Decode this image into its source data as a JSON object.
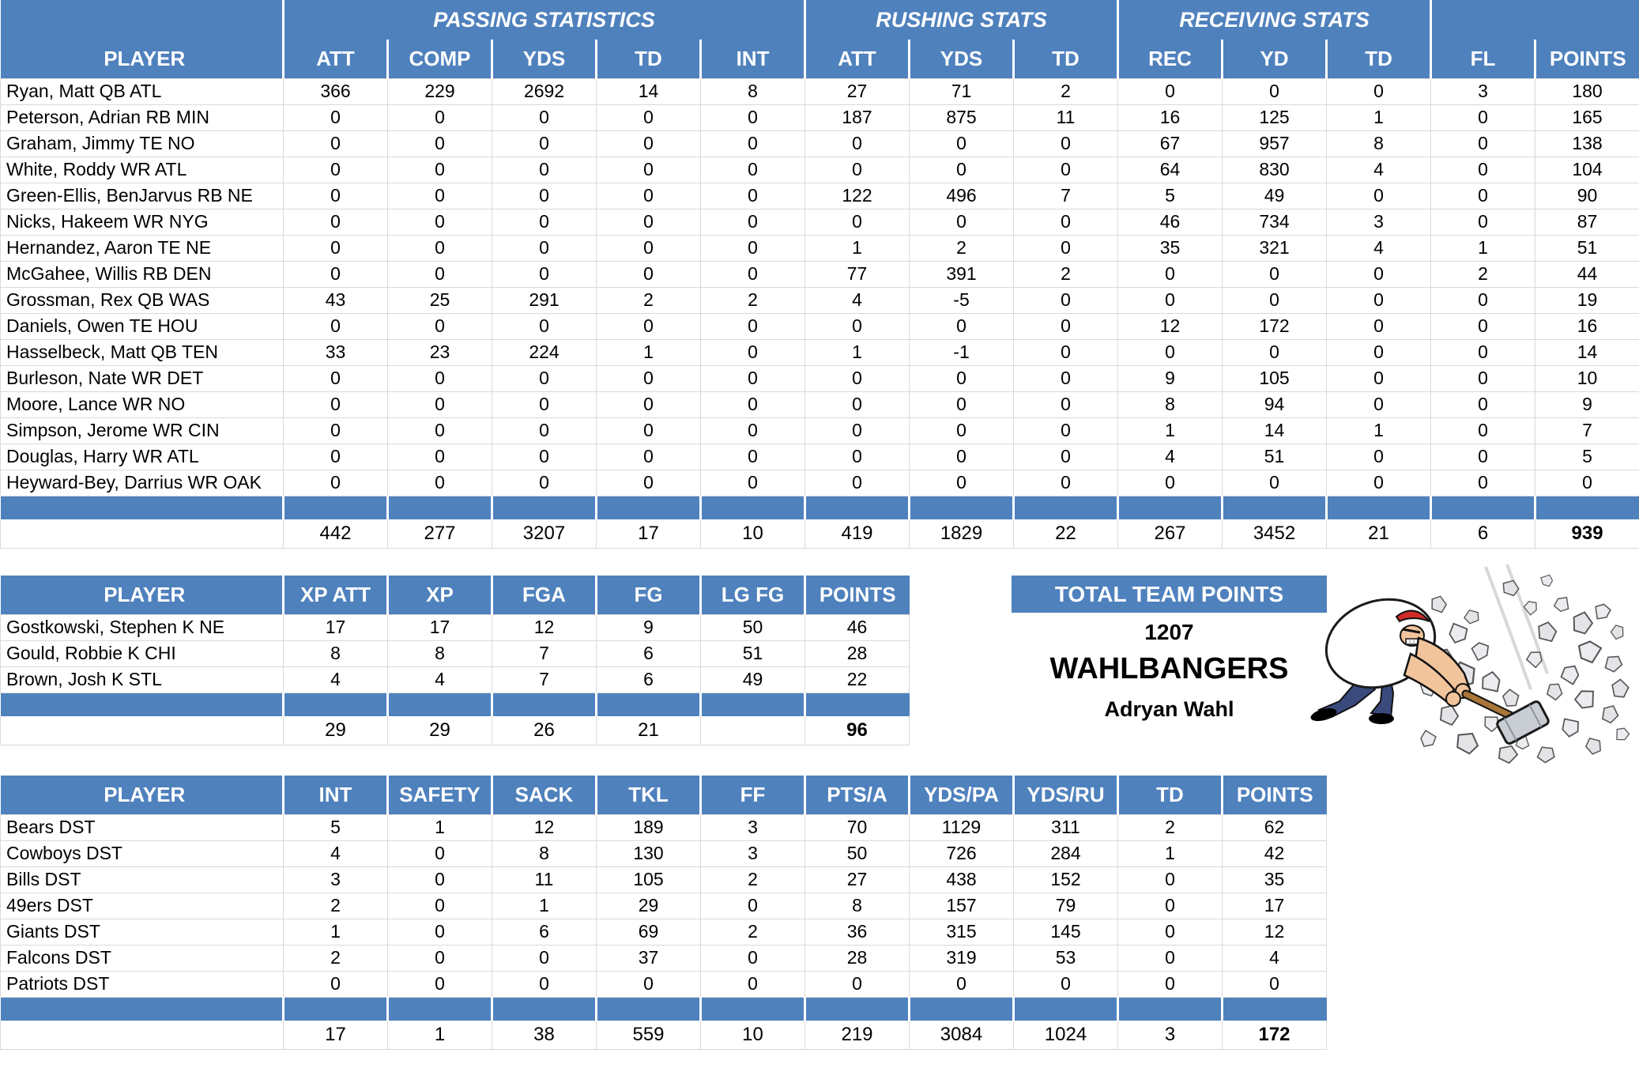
{
  "colors": {
    "header_blue": "#4F81BD",
    "grid_line": "#d9d9d9",
    "header_text": "#ffffff",
    "body_text": "#000000"
  },
  "main_table": {
    "player_header": "PLAYER",
    "group_headers": [
      {
        "label": "",
        "span": 1
      },
      {
        "label": "PASSING STATISTICS",
        "span": 5
      },
      {
        "label": "RUSHING STATS",
        "span": 3
      },
      {
        "label": "RECEIVING STATS",
        "span": 3
      },
      {
        "label": "",
        "span": 2
      }
    ],
    "columns": [
      "ATT",
      "COMP",
      "YDS",
      "TD",
      "INT",
      "ATT",
      "YDS",
      "TD",
      "REC",
      "YD",
      "TD",
      "FL",
      "POINTS"
    ],
    "rows": [
      {
        "player": "Ryan, Matt QB ATL",
        "values": [
          366,
          229,
          2692,
          14,
          8,
          27,
          71,
          2,
          0,
          0,
          0,
          3,
          180
        ]
      },
      {
        "player": "Peterson, Adrian RB MIN",
        "values": [
          0,
          0,
          0,
          0,
          0,
          187,
          875,
          11,
          16,
          125,
          1,
          0,
          165
        ]
      },
      {
        "player": "Graham, Jimmy TE NO",
        "values": [
          0,
          0,
          0,
          0,
          0,
          0,
          0,
          0,
          67,
          957,
          8,
          0,
          138
        ]
      },
      {
        "player": "White, Roddy WR ATL",
        "values": [
          0,
          0,
          0,
          0,
          0,
          0,
          0,
          0,
          64,
          830,
          4,
          0,
          104
        ]
      },
      {
        "player": "Green-Ellis, BenJarvus RB NE",
        "values": [
          0,
          0,
          0,
          0,
          0,
          122,
          496,
          7,
          5,
          49,
          0,
          0,
          90
        ]
      },
      {
        "player": "Nicks, Hakeem WR NYG",
        "values": [
          0,
          0,
          0,
          0,
          0,
          0,
          0,
          0,
          46,
          734,
          3,
          0,
          87
        ]
      },
      {
        "player": "Hernandez, Aaron TE NE",
        "values": [
          0,
          0,
          0,
          0,
          0,
          1,
          2,
          0,
          35,
          321,
          4,
          1,
          51
        ]
      },
      {
        "player": "McGahee, Willis RB DEN",
        "values": [
          0,
          0,
          0,
          0,
          0,
          77,
          391,
          2,
          0,
          0,
          0,
          2,
          44
        ]
      },
      {
        "player": "Grossman, Rex QB WAS",
        "values": [
          43,
          25,
          291,
          2,
          2,
          4,
          -5,
          0,
          0,
          0,
          0,
          0,
          19
        ]
      },
      {
        "player": "Daniels, Owen TE HOU",
        "values": [
          0,
          0,
          0,
          0,
          0,
          0,
          0,
          0,
          12,
          172,
          0,
          0,
          16
        ]
      },
      {
        "player": "Hasselbeck, Matt QB TEN",
        "values": [
          33,
          23,
          224,
          1,
          0,
          1,
          -1,
          0,
          0,
          0,
          0,
          0,
          14
        ]
      },
      {
        "player": "Burleson, Nate WR DET",
        "values": [
          0,
          0,
          0,
          0,
          0,
          0,
          0,
          0,
          9,
          105,
          0,
          0,
          10
        ]
      },
      {
        "player": "Moore, Lance WR NO",
        "values": [
          0,
          0,
          0,
          0,
          0,
          0,
          0,
          0,
          8,
          94,
          0,
          0,
          9
        ]
      },
      {
        "player": "Simpson, Jerome WR CIN",
        "values": [
          0,
          0,
          0,
          0,
          0,
          0,
          0,
          0,
          1,
          14,
          1,
          0,
          7
        ]
      },
      {
        "player": "Douglas, Harry WR ATL",
        "values": [
          0,
          0,
          0,
          0,
          0,
          0,
          0,
          0,
          4,
          51,
          0,
          0,
          5
        ]
      },
      {
        "player": "Heyward-Bey, Darrius WR OAK",
        "values": [
          0,
          0,
          0,
          0,
          0,
          0,
          0,
          0,
          0,
          0,
          0,
          0,
          0
        ]
      }
    ],
    "totals": [
      442,
      277,
      3207,
      17,
      10,
      419,
      1829,
      22,
      267,
      3452,
      21,
      6,
      939
    ]
  },
  "kicker_table": {
    "player_header": "PLAYER",
    "columns": [
      "XP ATT",
      "XP",
      "FGA",
      "FG",
      "LG FG",
      "POINTS"
    ],
    "rows": [
      {
        "player": "Gostkowski, Stephen K NE",
        "values": [
          17,
          17,
          12,
          9,
          50,
          46
        ]
      },
      {
        "player": "Gould, Robbie K CHI",
        "values": [
          8,
          8,
          7,
          6,
          51,
          28
        ]
      },
      {
        "player": "Brown, Josh K STL",
        "values": [
          4,
          4,
          7,
          6,
          49,
          22
        ]
      }
    ],
    "totals": [
      29,
      29,
      26,
      21,
      "",
      96
    ]
  },
  "dst_table": {
    "player_header": "PLAYER",
    "columns": [
      "INT",
      "SAFETY",
      "SACK",
      "TKL",
      "FF",
      "PTS/A",
      "YDS/PA",
      "YDS/RU",
      "TD",
      "POINTS"
    ],
    "rows": [
      {
        "player": "Bears DST",
        "values": [
          5,
          1,
          12,
          189,
          3,
          70,
          1129,
          311,
          2,
          62
        ]
      },
      {
        "player": "Cowboys DST",
        "values": [
          4,
          0,
          8,
          130,
          3,
          50,
          726,
          284,
          1,
          42
        ]
      },
      {
        "player": "Bills DST",
        "values": [
          3,
          0,
          11,
          105,
          2,
          27,
          438,
          152,
          0,
          35
        ]
      },
      {
        "player": "49ers DST",
        "values": [
          2,
          0,
          1,
          29,
          0,
          8,
          157,
          79,
          0,
          17
        ]
      },
      {
        "player": "Giants DST",
        "values": [
          1,
          0,
          6,
          69,
          2,
          36,
          315,
          145,
          0,
          12
        ]
      },
      {
        "player": "Falcons DST",
        "values": [
          2,
          0,
          0,
          37,
          0,
          28,
          319,
          53,
          0,
          4
        ]
      },
      {
        "player": "Patriots DST",
        "values": [
          0,
          0,
          0,
          0,
          0,
          0,
          0,
          0,
          0,
          0
        ]
      }
    ],
    "totals": [
      17,
      1,
      38,
      559,
      10,
      219,
      3084,
      1024,
      3,
      172
    ]
  },
  "team_box": {
    "title": "TOTAL TEAM POINTS",
    "points": "1207",
    "team_name": "WAHLBANGERS",
    "owner": "Adryan Wahl"
  },
  "illustration": {
    "name": "man-smashing-rocks-with-hammer"
  }
}
